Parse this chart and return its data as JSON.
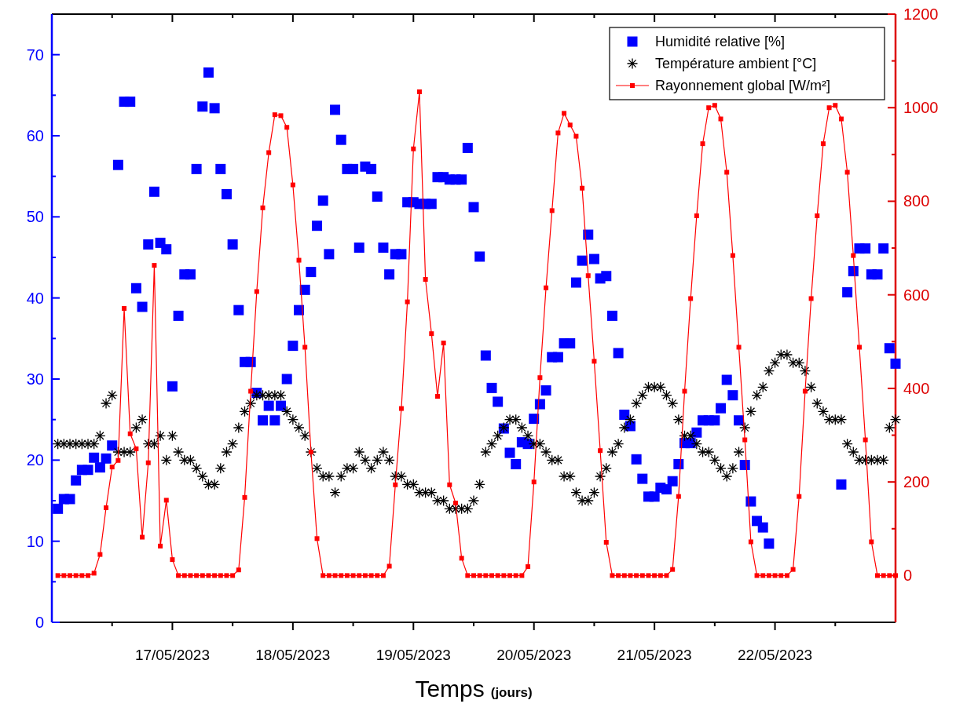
{
  "chart_data": {
    "type": "scatter",
    "xlabel": "Temps (jours)",
    "legend": "top right",
    "grid": false,
    "x": [
      "2023-05-16T01:12",
      "2023-05-16T02:24",
      "2023-05-16T03:36",
      "2023-05-16T04:48",
      "2023-05-16T06:00",
      "2023-05-16T07:12",
      "2023-05-16T08:24",
      "2023-05-16T09:36",
      "2023-05-16T10:48",
      "2023-05-16T12:00",
      "2023-05-16T13:12",
      "2023-05-16T14:24",
      "2023-05-16T15:36",
      "2023-05-16T16:48",
      "2023-05-16T18:00",
      "2023-05-16T19:12",
      "2023-05-16T20:24",
      "2023-05-16T21:36",
      "2023-05-16T22:48",
      "2023-05-17T00:00",
      "2023-05-17T01:12",
      "2023-05-17T02:24",
      "2023-05-17T03:36",
      "2023-05-17T04:48",
      "2023-05-17T06:00",
      "2023-05-17T07:12",
      "2023-05-17T08:24",
      "2023-05-17T09:36",
      "2023-05-17T10:48",
      "2023-05-17T12:00",
      "2023-05-17T13:12",
      "2023-05-17T14:24",
      "2023-05-17T15:36",
      "2023-05-17T16:48",
      "2023-05-17T18:00",
      "2023-05-17T19:12",
      "2023-05-17T20:24",
      "2023-05-17T21:36",
      "2023-05-17T22:48",
      "2023-05-18T00:00",
      "2023-05-18T01:12",
      "2023-05-18T02:24",
      "2023-05-18T03:36",
      "2023-05-18T04:48",
      "2023-05-18T06:00",
      "2023-05-18T07:12",
      "2023-05-18T08:24",
      "2023-05-18T09:36",
      "2023-05-18T10:48",
      "2023-05-18T12:00",
      "2023-05-18T13:12",
      "2023-05-18T14:24",
      "2023-05-18T15:36",
      "2023-05-18T16:48",
      "2023-05-18T18:00",
      "2023-05-18T19:12",
      "2023-05-18T20:24",
      "2023-05-18T21:36",
      "2023-05-18T22:48",
      "2023-05-19T00:00",
      "2023-05-19T01:12",
      "2023-05-19T02:24",
      "2023-05-19T03:36",
      "2023-05-19T04:48",
      "2023-05-19T06:00",
      "2023-05-19T07:12",
      "2023-05-19T08:24",
      "2023-05-19T09:36",
      "2023-05-19T10:48",
      "2023-05-19T12:00",
      "2023-05-19T13:12",
      "2023-05-19T14:24",
      "2023-05-19T15:36",
      "2023-05-19T16:48",
      "2023-05-19T18:00",
      "2023-05-19T19:12",
      "2023-05-19T20:24",
      "2023-05-19T21:36",
      "2023-05-19T22:48",
      "2023-05-20T00:00",
      "2023-05-20T01:12",
      "2023-05-20T02:24",
      "2023-05-20T03:36",
      "2023-05-20T04:48",
      "2023-05-20T06:00",
      "2023-05-20T07:12",
      "2023-05-20T08:24",
      "2023-05-20T09:36",
      "2023-05-20T10:48",
      "2023-05-20T12:00",
      "2023-05-20T13:12",
      "2023-05-20T14:24",
      "2023-05-20T15:36",
      "2023-05-20T16:48",
      "2023-05-20T18:00",
      "2023-05-20T19:12",
      "2023-05-20T20:24",
      "2023-05-20T21:36",
      "2023-05-20T22:48",
      "2023-05-21T00:00",
      "2023-05-21T01:12",
      "2023-05-21T02:24",
      "2023-05-21T03:36",
      "2023-05-21T04:48",
      "2023-05-21T06:00",
      "2023-05-21T07:12",
      "2023-05-21T08:24",
      "2023-05-21T09:36",
      "2023-05-21T10:48",
      "2023-05-21T12:00",
      "2023-05-21T13:12",
      "2023-05-21T14:24",
      "2023-05-21T15:36",
      "2023-05-21T16:48",
      "2023-05-21T18:00",
      "2023-05-21T19:12",
      "2023-05-21T20:24",
      "2023-05-21T21:36",
      "2023-05-21T22:48",
      "2023-05-22T00:00",
      "2023-05-22T01:12",
      "2023-05-22T02:24",
      "2023-05-22T03:36",
      "2023-05-22T04:48",
      "2023-05-22T06:00",
      "2023-05-22T07:12",
      "2023-05-22T08:24",
      "2023-05-22T09:36",
      "2023-05-22T10:48",
      "2023-05-22T12:00",
      "2023-05-22T13:12",
      "2023-05-22T14:24",
      "2023-05-22T15:36",
      "2023-05-22T16:48",
      "2023-05-22T18:00",
      "2023-05-22T19:12",
      "2023-05-22T20:24",
      "2023-05-22T21:36",
      "2023-05-22T22:48",
      "2023-05-23T00:00"
    ],
    "xlim": [
      "2023-05-16",
      "2023-05-23"
    ],
    "xticks": [
      {
        "value": "2023-05-16T12:00",
        "label": null
      },
      {
        "value": "2023-05-17",
        "label": "17/05/2023"
      },
      {
        "value": "2023-05-17T12:00",
        "label": null
      },
      {
        "value": "2023-05-18",
        "label": "18/05/2023"
      },
      {
        "value": "2023-05-18T12:00",
        "label": null
      },
      {
        "value": "2023-05-19",
        "label": "19/05/2023"
      },
      {
        "value": "2023-05-19T12:00",
        "label": null
      },
      {
        "value": "2023-05-20",
        "label": "20/05/2023"
      },
      {
        "value": "2023-05-20T12:00",
        "label": null
      },
      {
        "value": "2023-05-21",
        "label": "21/05/2023"
      },
      {
        "value": "2023-05-21T12:00",
        "label": null
      },
      {
        "value": "2023-05-22",
        "label": "22/05/2023"
      },
      {
        "value": "2023-05-22T12:00",
        "label": null
      }
    ],
    "ylim": [
      0,
      75
    ],
    "yticks": [
      0,
      {
        "value": 5,
        "label": null
      },
      10,
      {
        "value": 15,
        "label": null
      },
      20,
      {
        "value": 25,
        "label": null
      },
      30,
      {
        "value": 35,
        "label": null
      },
      40,
      {
        "value": 45,
        "label": null
      },
      50,
      {
        "value": 55,
        "label": null
      },
      60,
      {
        "value": 65,
        "label": null
      },
      70
    ],
    "y2lim": [
      -100,
      1200
    ],
    "y2ticks": [
      0,
      {
        "value": 100,
        "label": null
      },
      200,
      {
        "value": 300,
        "label": null
      },
      400,
      {
        "value": 500,
        "label": null
      },
      600,
      {
        "value": 700,
        "label": null
      },
      800,
      {
        "value": 900,
        "label": null
      },
      1000,
      {
        "value": 1100,
        "label": null
      },
      1200
    ],
    "series": [
      {
        "name": "Humidité relative [%]",
        "marker": "square",
        "color": "#0000ff",
        "values": [
          14.0,
          15.2,
          15.2,
          17.5,
          18.8,
          18.8,
          20.3,
          19.1,
          20.2,
          21.8,
          56.4,
          64.2,
          64.2,
          41.2,
          38.9,
          46.6,
          53.1,
          46.8,
          46.0,
          29.1,
          37.8,
          42.9,
          42.9,
          55.9,
          63.6,
          67.8,
          63.4,
          55.9,
          52.8,
          46.6,
          38.5,
          32.1,
          32.1,
          28.3,
          24.9,
          26.7,
          24.9,
          26.7,
          30.0,
          34.1,
          38.5,
          41.0,
          43.2,
          48.9,
          52.0,
          45.4,
          63.2,
          59.5,
          55.9,
          55.9,
          46.2,
          56.2,
          55.9,
          52.5,
          46.2,
          42.9,
          45.4,
          45.4,
          51.8,
          51.8,
          51.6,
          51.6,
          51.6,
          54.9,
          54.9,
          54.6,
          54.6,
          54.6,
          58.5,
          51.2,
          45.1,
          32.9,
          28.9,
          27.2,
          23.9,
          20.9,
          19.5,
          22.2,
          22.0,
          25.1,
          26.9,
          28.6,
          32.7,
          32.7,
          34.4,
          34.4,
          41.9,
          44.6,
          47.8,
          44.8,
          42.4,
          42.7,
          37.8,
          33.2,
          25.6,
          24.2,
          20.1,
          17.7,
          15.5,
          15.5,
          16.6,
          16.4,
          17.4,
          19.5,
          22.1,
          22.1,
          23.4,
          24.9,
          24.9,
          24.9,
          26.4,
          29.9,
          28.0,
          24.9,
          19.4,
          14.9,
          12.5,
          11.7,
          9.7,
          null,
          null,
          null,
          null,
          null,
          null,
          null,
          null,
          null,
          null,
          null,
          17.0,
          40.7,
          43.3,
          46.1,
          46.1,
          42.9,
          42.9,
          46.1,
          33.8,
          31.9
        ]
      },
      {
        "name": "Température ambient [°C]",
        "marker": "cross",
        "color": "#000000",
        "values": [
          22,
          22,
          22,
          22,
          22,
          22,
          22,
          23,
          27,
          28,
          21,
          21,
          21,
          24,
          25,
          22,
          22,
          23,
          20,
          23,
          21,
          20,
          20,
          19,
          18,
          17,
          17,
          19,
          21,
          22,
          24,
          26,
          27,
          28,
          28,
          28,
          28,
          28,
          26,
          25,
          24,
          23,
          21,
          19,
          18,
          18,
          16,
          18,
          19,
          19,
          21,
          20,
          19,
          20,
          21,
          20,
          18,
          18,
          17,
          17,
          16,
          16,
          16,
          15,
          15,
          14,
          14,
          14,
          14,
          15,
          17,
          21,
          22,
          23,
          24,
          25,
          25,
          24,
          23,
          22,
          22,
          21,
          20,
          20,
          18,
          18,
          16,
          15,
          15,
          16,
          18,
          19,
          21,
          22,
          24,
          25,
          27,
          28,
          29,
          29,
          29,
          28,
          27,
          25,
          23,
          23,
          22,
          21,
          21,
          20,
          19,
          18,
          19,
          21,
          24,
          26,
          28,
          29,
          31,
          32,
          33,
          33,
          32,
          32,
          31,
          29,
          27,
          26,
          25,
          25,
          25,
          22,
          21,
          20,
          20,
          20,
          20,
          20,
          24,
          25
        ]
      },
      {
        "name": "Rayonnement global [W/m²]",
        "type": "line",
        "marker": "square",
        "line_style": "solid",
        "axis": "y2",
        "color": "#ff0000",
        "values": [
          0,
          0,
          0,
          0,
          0,
          0,
          5,
          45,
          145,
          232,
          246,
          571,
          303,
          271,
          82,
          241,
          663,
          63,
          161,
          34,
          0,
          0,
          0,
          0,
          0,
          0,
          0,
          0,
          0,
          0,
          12,
          167,
          394,
          607,
          786,
          904,
          985,
          983,
          958,
          835,
          674,
          488,
          264,
          79,
          0,
          0,
          0,
          0,
          0,
          0,
          0,
          0,
          0,
          0,
          0,
          20,
          194,
          357,
          585,
          912,
          1034,
          633,
          517,
          383,
          497,
          194,
          155,
          37,
          0,
          0,
          0,
          0,
          0,
          0,
          0,
          0,
          0,
          0,
          19,
          200,
          423,
          615,
          780,
          946,
          988,
          963,
          939,
          828,
          641,
          458,
          267,
          71,
          0,
          0,
          0,
          0,
          0,
          0,
          0,
          0,
          0,
          0,
          13,
          169,
          394,
          592,
          769,
          923,
          1000,
          1005,
          976,
          862,
          684,
          488,
          290,
          72,
          0,
          0,
          0,
          0,
          0,
          0,
          13,
          169,
          394,
          592,
          769,
          923,
          1000,
          1005,
          976,
          862,
          684,
          488,
          290,
          72,
          0,
          0,
          0,
          0
        ]
      }
    ]
  }
}
